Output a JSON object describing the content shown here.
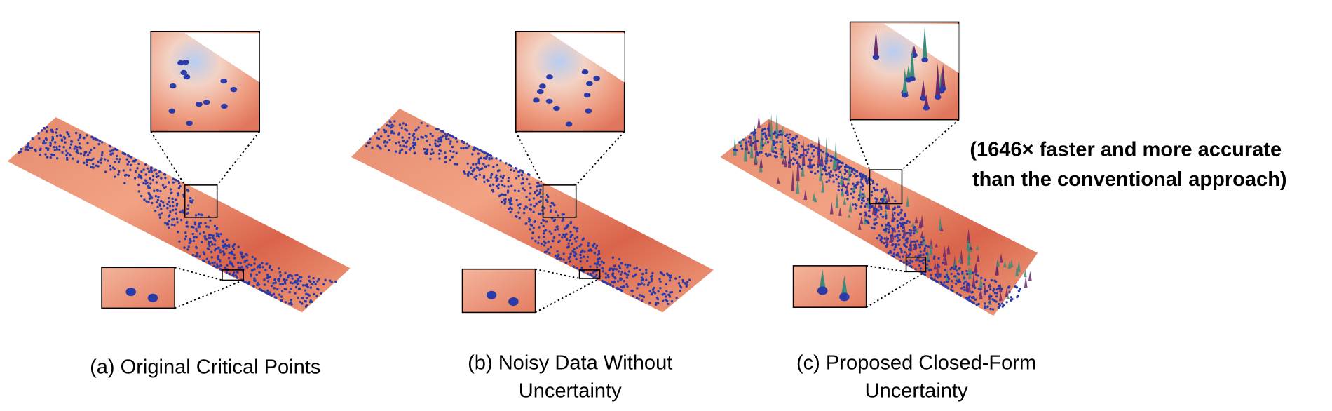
{
  "panels": [
    {
      "caption": [
        "(a) Original Critical Points"
      ]
    },
    {
      "caption": [
        "(b) Noisy Data Without",
        "Uncertainty"
      ]
    },
    {
      "caption": [
        "(c) Proposed Closed-Form",
        "Uncertainty"
      ]
    }
  ],
  "annotation": [
    "(1646× faster and more accurate",
    "than the conventional approach)"
  ]
}
